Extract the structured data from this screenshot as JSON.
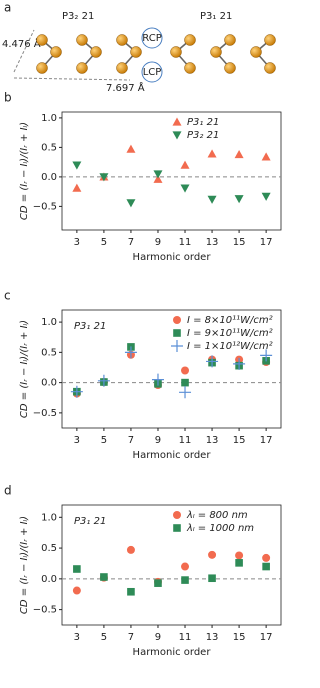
{
  "diagram": {
    "label": "a",
    "left_title": "P3₂ 21",
    "right_title": "P3₁ 21",
    "height": "4.476 Å",
    "width": "7.697 Å",
    "rcp": "RCP",
    "lcp": "LCP"
  },
  "chart_data": [
    {
      "type": "scatter",
      "panel": "b",
      "x_label": "Harmonic order",
      "y_label": "CD = (Iᵣ − Iₗ)/(Iᵣ + Iₗ)",
      "xlim": [
        1.9,
        18.1
      ],
      "xticks": [
        3,
        5,
        7,
        9,
        11,
        13,
        15,
        17
      ],
      "ylim": [
        -0.9,
        1.1
      ],
      "yticks": [
        {
          "value": -0.5,
          "label": "−0.5"
        },
        {
          "value": 0,
          "label": "0.0"
        },
        0.5,
        {
          "value": 1,
          "label": "1.0"
        }
      ],
      "zero_line": true,
      "legend": "upper right",
      "series": [
        {
          "name": "P3₁ 21",
          "color": "#f26b4f",
          "marker": "triangle-up",
          "x": [
            3,
            5,
            7,
            9,
            11,
            13,
            15,
            17
          ],
          "values": [
            -0.19,
            0.0,
            0.47,
            -0.04,
            0.2,
            0.39,
            0.38,
            0.34
          ]
        },
        {
          "name": "P3₂ 21",
          "color": "#2e8b57",
          "marker": "triangle-down",
          "x": [
            3,
            5,
            7,
            9,
            11,
            13,
            15,
            17
          ],
          "values": [
            0.2,
            0.0,
            -0.44,
            0.05,
            -0.19,
            -0.38,
            -0.37,
            -0.33
          ]
        }
      ]
    },
    {
      "type": "scatter",
      "panel": "c",
      "annotation": "P3₁ 21",
      "x_label": "Harmonic order",
      "y_label": "CD = (Iᵣ − Iₗ)/(Iᵣ + Iₗ)",
      "xlim": [
        1.9,
        18.1
      ],
      "xticks": [
        3,
        5,
        7,
        9,
        11,
        13,
        15,
        17
      ],
      "ylim": [
        -0.75,
        1.2
      ],
      "yticks": [
        {
          "value": -0.5,
          "label": "−0.5"
        },
        {
          "value": 0,
          "label": "0.0"
        },
        0.5,
        {
          "value": 1,
          "label": "1.0"
        }
      ],
      "zero_line": true,
      "legend": "upper right",
      "series": [
        {
          "name": "I = 8×10¹¹W/cm²",
          "color": "#f26b4f",
          "marker": "circle",
          "x": [
            3,
            5,
            7,
            9,
            11,
            13,
            15,
            17
          ],
          "values": [
            -0.18,
            0.01,
            0.46,
            -0.04,
            0.2,
            0.38,
            0.38,
            0.34
          ]
        },
        {
          "name": "I = 9×10¹¹W/cm²",
          "color": "#2e8b57",
          "marker": "square",
          "x": [
            3,
            5,
            7,
            9,
            11,
            13,
            15,
            17
          ],
          "values": [
            -0.15,
            0.01,
            0.59,
            -0.02,
            0.0,
            0.33,
            0.28,
            0.36
          ]
        },
        {
          "name": "I = 1×10¹²W/cm²",
          "color": "#5b8fd6",
          "marker": "plus",
          "x": [
            3,
            5,
            7,
            9,
            11,
            13,
            15,
            17
          ],
          "values": [
            -0.15,
            0.03,
            0.5,
            0.05,
            -0.16,
            0.35,
            0.31,
            0.45
          ]
        }
      ]
    },
    {
      "type": "scatter",
      "panel": "d",
      "annotation": "P3₁ 21",
      "x_label": "Harmonic order",
      "y_label": "CD = (Iᵣ − Iₗ)/(Iᵣ + Iₗ)",
      "xlim": [
        1.9,
        18.1
      ],
      "xticks": [
        3,
        5,
        7,
        9,
        11,
        13,
        15,
        17
      ],
      "ylim": [
        -0.75,
        1.2
      ],
      "yticks": [
        {
          "value": -0.5,
          "label": "−0.5"
        },
        {
          "value": 0,
          "label": "0.0"
        },
        0.5,
        {
          "value": 1,
          "label": "1.0"
        }
      ],
      "zero_line": true,
      "legend": "upper right",
      "series": [
        {
          "name": "λₗ = 800 nm",
          "color": "#f26b4f",
          "marker": "circle",
          "x": [
            3,
            5,
            7,
            9,
            11,
            13,
            15,
            17
          ],
          "values": [
            -0.19,
            0.02,
            0.47,
            -0.05,
            0.2,
            0.39,
            0.38,
            0.34
          ]
        },
        {
          "name": "λₗ = 1000 nm",
          "color": "#2e8b57",
          "marker": "square",
          "x": [
            3,
            5,
            7,
            9,
            11,
            13,
            15,
            17
          ],
          "values": [
            0.16,
            0.03,
            -0.21,
            -0.07,
            -0.02,
            0.01,
            0.26,
            0.2
          ]
        }
      ]
    }
  ]
}
